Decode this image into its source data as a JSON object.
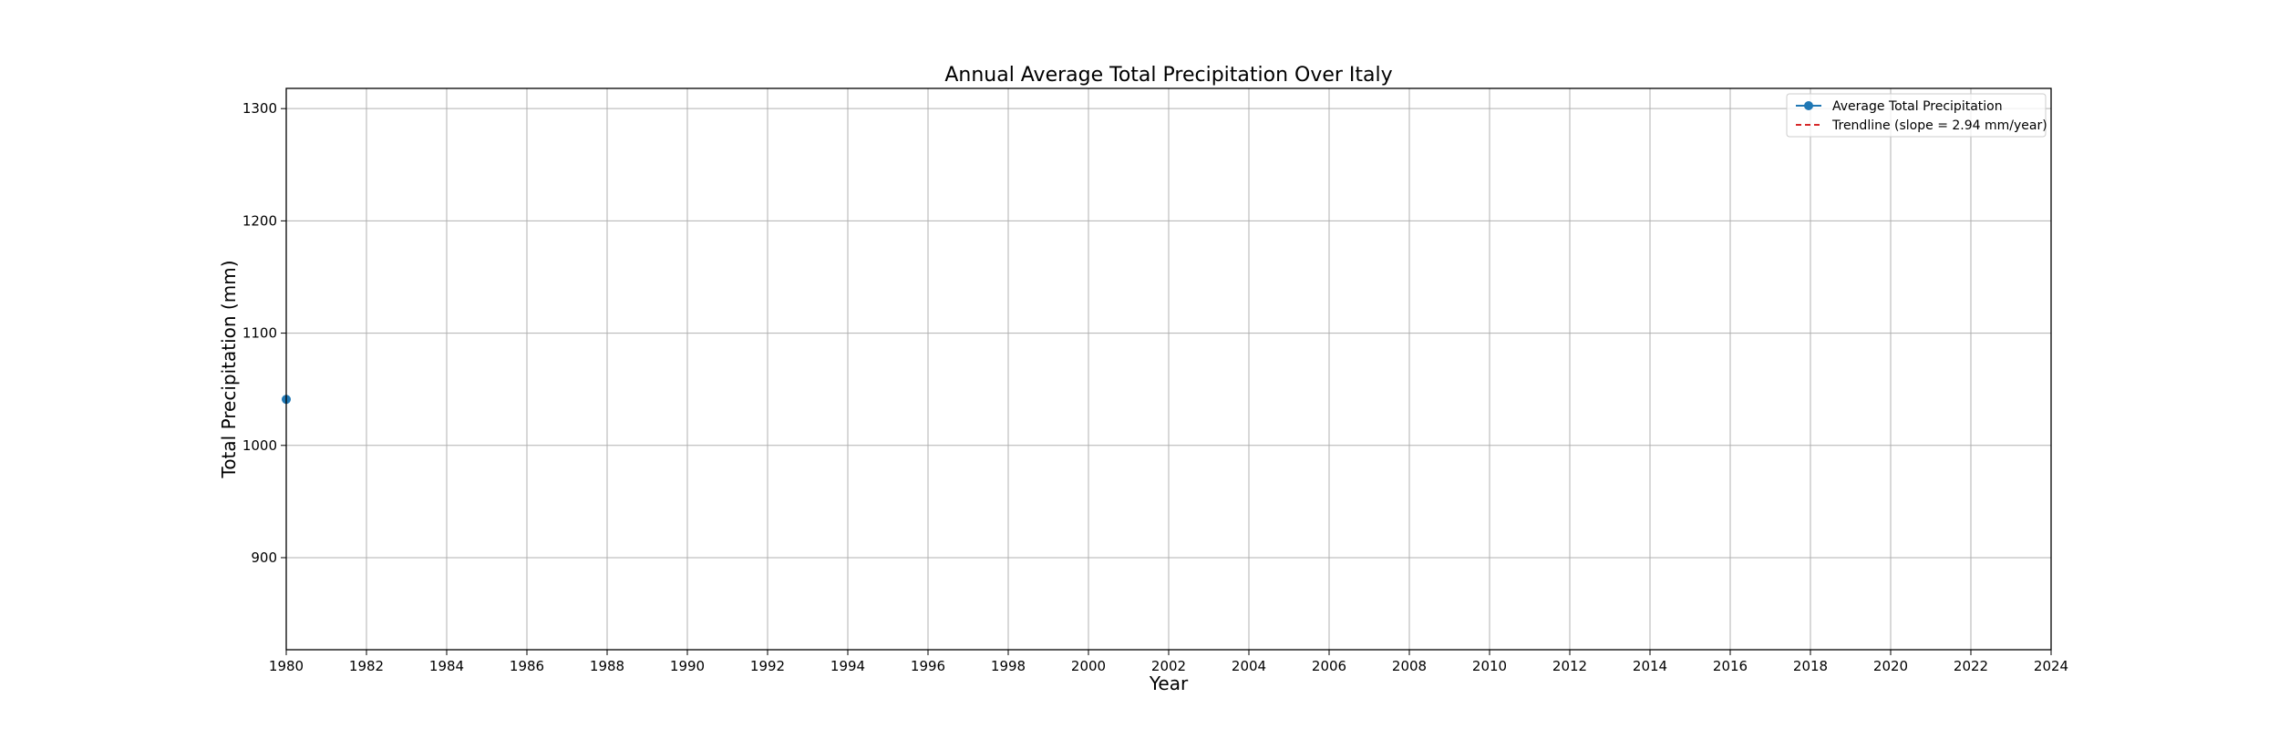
{
  "chart_data": {
    "type": "line",
    "title": "Annual Average Total Precipitation Over Italy",
    "xlabel": "Year",
    "ylabel": "Total Precipitation (mm)",
    "xlim": [
      1980,
      2024
    ],
    "ylim": [
      818,
      1318
    ],
    "x_ticks": [
      1980,
      1982,
      1984,
      1986,
      1988,
      1990,
      1992,
      1994,
      1996,
      1998,
      2000,
      2002,
      2004,
      2006,
      2008,
      2010,
      2012,
      2014,
      2016,
      2018,
      2020,
      2022,
      2024
    ],
    "y_ticks": [
      900,
      1000,
      1100,
      1200,
      1300
    ],
    "grid": true,
    "legend_position": "top-right",
    "series": [
      {
        "name": "Average Total Precipitation",
        "style": "line-marker",
        "color": "#1f77b4",
        "x": [
          1980
        ],
        "y": [
          1041
        ]
      },
      {
        "name": "Trendline (slope = 2.94 mm/year)",
        "style": "dashed",
        "color": "#d62728",
        "slope": 2.94,
        "x": [],
        "y": []
      }
    ]
  }
}
